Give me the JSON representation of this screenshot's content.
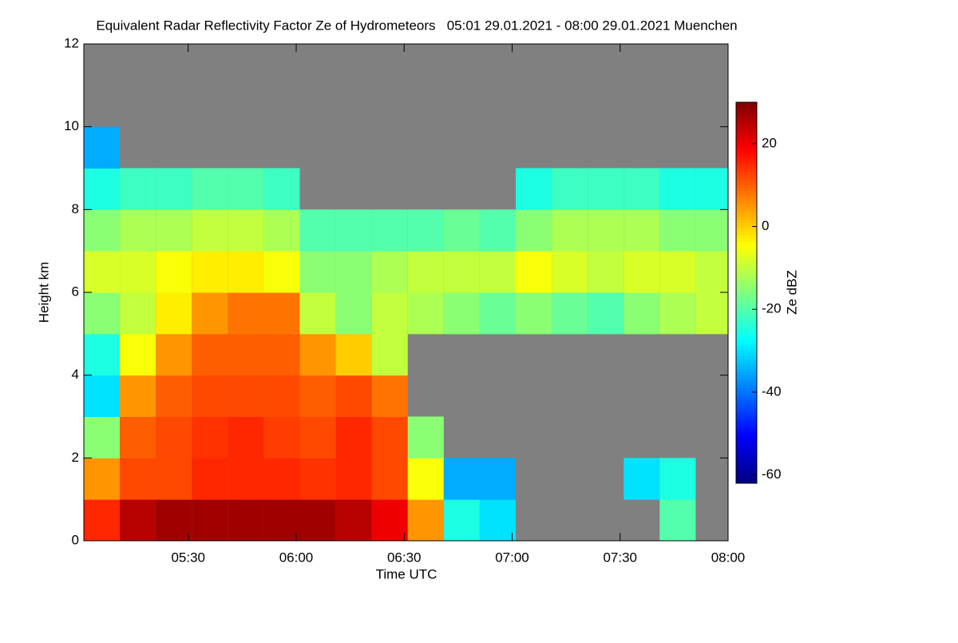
{
  "chart_data": {
    "type": "heatmap",
    "title": "Equivalent Radar Reflectivity Factor Ze of Hydrometeors   05:01 29.01.2021 - 08:00 29.01.2021 Muenchen",
    "xlabel": "Time UTC",
    "ylabel": "Height km",
    "colorbar_label": "Ze dBZ",
    "colormap": "jet",
    "missing_color": "#808080",
    "x": [
      "05:06",
      "05:16",
      "05:26",
      "05:36",
      "05:46",
      "05:56",
      "06:06",
      "06:16",
      "06:26",
      "06:36",
      "06:46",
      "06:56",
      "07:06",
      "07:16",
      "07:26",
      "07:36",
      "07:46",
      "07:56"
    ],
    "y": [
      0.5,
      1.5,
      2.5,
      3.5,
      4.5,
      5.5,
      6.5,
      7.5,
      8.5,
      9.5,
      10.5,
      11.5
    ],
    "values": [
      [
        15,
        25,
        27,
        27,
        27,
        27,
        27,
        25,
        20,
        5,
        -25,
        -30,
        null,
        null,
        null,
        null,
        -20,
        null
      ],
      [
        5,
        12,
        12,
        15,
        15,
        15,
        14,
        15,
        12,
        -5,
        -35,
        -35,
        null,
        null,
        null,
        -30,
        -25,
        null
      ],
      [
        -15,
        10,
        12,
        14,
        15,
        13,
        12,
        15,
        12,
        -15,
        null,
        null,
        null,
        null,
        null,
        null,
        null,
        null
      ],
      [
        -30,
        5,
        10,
        12,
        12,
        12,
        10,
        12,
        8,
        null,
        null,
        null,
        null,
        null,
        null,
        null,
        null,
        null
      ],
      [
        -25,
        -5,
        5,
        10,
        10,
        10,
        5,
        0,
        -10,
        null,
        null,
        null,
        null,
        null,
        null,
        null,
        null,
        null
      ],
      [
        -15,
        -10,
        -3,
        5,
        8,
        8,
        -10,
        -15,
        -10,
        -12,
        -15,
        -18,
        -15,
        -18,
        -20,
        -15,
        -12,
        -10
      ],
      [
        -8,
        -8,
        -5,
        -3,
        -3,
        -5,
        -15,
        -15,
        -12,
        -10,
        -10,
        -10,
        -5,
        -8,
        -10,
        -8,
        -8,
        -10
      ],
      [
        -15,
        -12,
        -12,
        -10,
        -10,
        -12,
        -20,
        -20,
        -20,
        -20,
        -18,
        -20,
        -15,
        -12,
        -12,
        -12,
        -15,
        -15
      ],
      [
        -25,
        -22,
        -22,
        -20,
        -20,
        -22,
        null,
        null,
        null,
        null,
        null,
        null,
        -25,
        -22,
        -22,
        -22,
        -25,
        -25
      ],
      [
        -35,
        null,
        null,
        null,
        null,
        null,
        null,
        null,
        null,
        null,
        null,
        null,
        null,
        null,
        null,
        null,
        null,
        null
      ],
      [
        null,
        null,
        null,
        null,
        null,
        null,
        null,
        null,
        null,
        null,
        null,
        null,
        null,
        null,
        null,
        null,
        null,
        null
      ],
      [
        null,
        null,
        null,
        null,
        null,
        null,
        null,
        null,
        null,
        null,
        null,
        null,
        null,
        null,
        null,
        null,
        null,
        null
      ]
    ],
    "xlim": [
      "05:01",
      "08:00"
    ],
    "xticks": [
      "05:30",
      "06:00",
      "06:30",
      "07:00",
      "07:30",
      "08:00"
    ],
    "ylim": [
      0,
      12
    ],
    "yticks": [
      0,
      2,
      4,
      6,
      8,
      10,
      12
    ],
    "zlim": [
      -62,
      30
    ],
    "zticks": [
      -60,
      -40,
      -20,
      0,
      20
    ]
  }
}
